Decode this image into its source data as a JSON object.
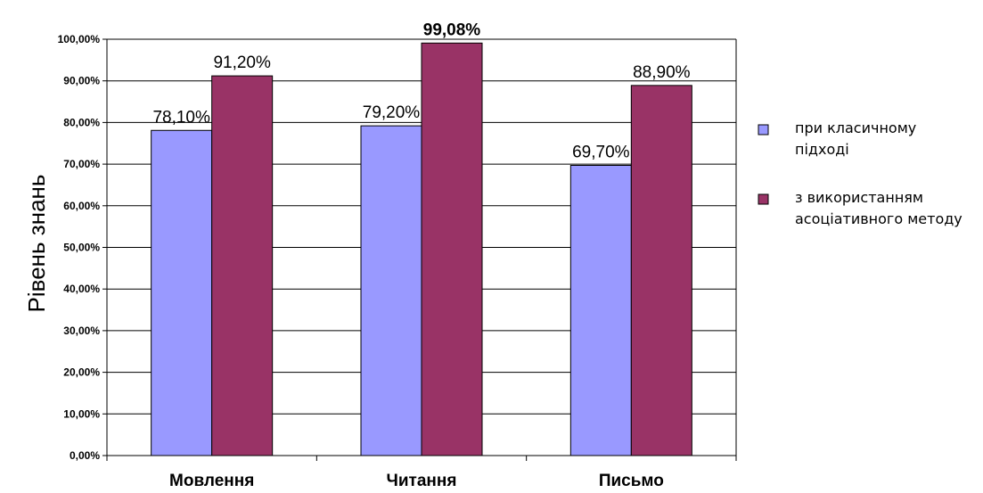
{
  "chart_data": {
    "type": "bar",
    "title": "",
    "xlabel": "",
    "ylabel": "Рівень знань",
    "categories": [
      "Мовлення",
      "Читання",
      "Письмо"
    ],
    "series": [
      {
        "name_lines": [
          "при класичному",
          "підході"
        ],
        "color": "#9999ff",
        "values": [
          78.1,
          79.2,
          69.7
        ],
        "labels": [
          "78,10%",
          "79,20%",
          "69,70%"
        ]
      },
      {
        "name_lines": [
          "з використанням",
          "асоціативного методу"
        ],
        "color": "#993366",
        "values": [
          91.2,
          99.08,
          88.9
        ],
        "labels": [
          "91,20%",
          "99,08%",
          "88,90%"
        ]
      }
    ],
    "ylim": [
      0,
      100
    ],
    "yticks": [
      "0,00%",
      "10,00%",
      "20,00%",
      "30,00%",
      "40,00%",
      "50,00%",
      "60,00%",
      "70,00%",
      "80,00%",
      "90,00%",
      "100,00%"
    ],
    "grid": true,
    "legend_position": "right"
  }
}
